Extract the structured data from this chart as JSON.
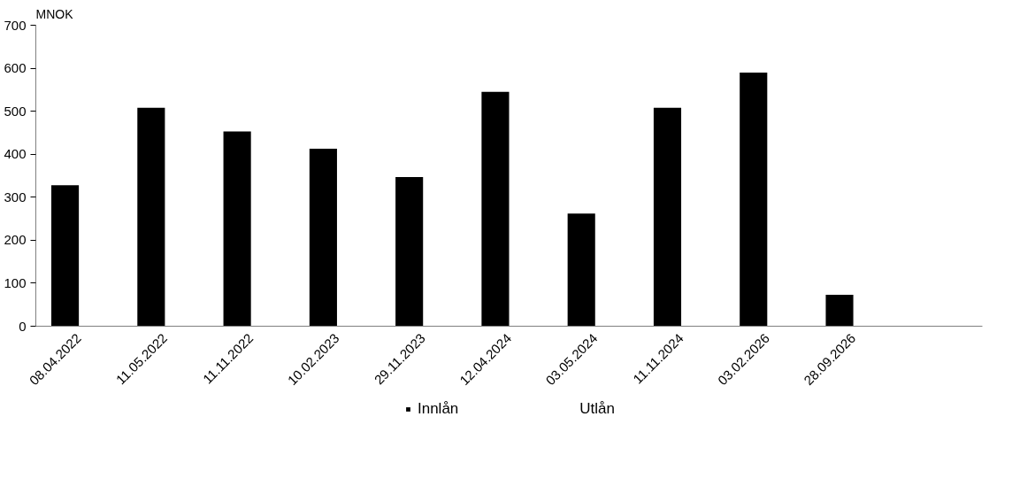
{
  "chart_data": {
    "type": "bar",
    "ylabel": "MNOK",
    "categories": [
      "08.04.2022",
      "11.05.2022",
      "11.11.2022",
      "10.02.2023",
      "29.11.2023",
      "12.04.2024",
      "03.05.2024",
      "11.11.2024",
      "03.02.2026",
      "28.09.2026",
      null
    ],
    "series": [
      {
        "name": "Innlån",
        "color": "#000000",
        "values": [
          328,
          508,
          453,
          413,
          347,
          545,
          262,
          508,
          590,
          73,
          null
        ]
      },
      {
        "name": "Utlån",
        "values": [
          null,
          null,
          null,
          null,
          null,
          null,
          null,
          null,
          null,
          null,
          null
        ]
      }
    ],
    "ylim": [
      0,
      700
    ],
    "yticks": [
      0,
      100,
      200,
      300,
      400,
      500,
      600,
      700
    ],
    "grid": false,
    "legend": "bottom"
  }
}
